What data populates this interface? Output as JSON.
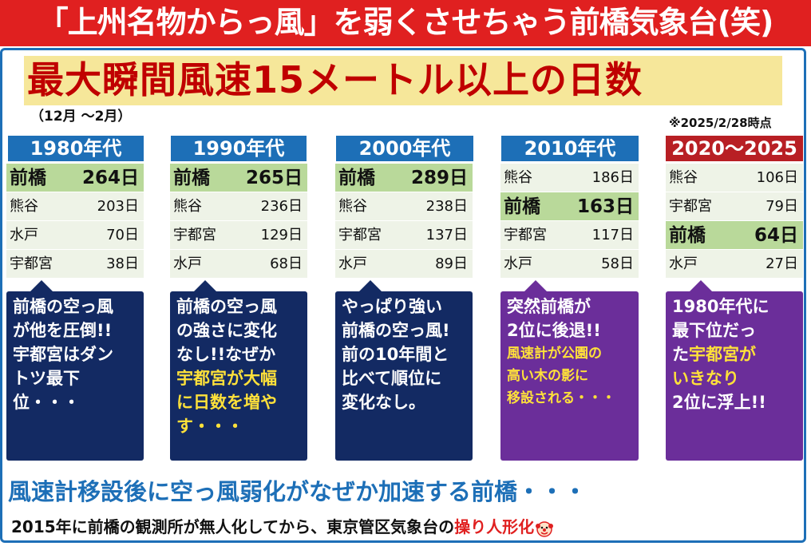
{
  "banner": {
    "title": "「上州名物からっ風」を弱くさせちゃう前橋気象台(笑)"
  },
  "main": {
    "title": "最大瞬間風速15メートル以上の日数",
    "period": "（12月 ～2月）",
    "as_of": "※2025/2/28時点"
  },
  "decades": [
    {
      "header": "1980年代",
      "rows": [
        {
          "city": "前橋",
          "days": "264日"
        },
        {
          "city": "熊谷",
          "days": "203日"
        },
        {
          "city": "水戸",
          "days": "70日"
        },
        {
          "city": "宇都宮",
          "days": "38日"
        }
      ],
      "callout": {
        "line1": "前橋の空っ風",
        "line2": "が他を圧倒!!",
        "line3": "宇都宮はダン",
        "line4": "トツ最下位・・・"
      }
    },
    {
      "header": "1990年代",
      "rows": [
        {
          "city": "前橋",
          "days": "265日"
        },
        {
          "city": "熊谷",
          "days": "236日"
        },
        {
          "city": "宇都宮",
          "days": "129日"
        },
        {
          "city": "水戸",
          "days": "68日"
        }
      ],
      "callout": {
        "line1": "前橋の空っ風",
        "line2": "の強さに変化",
        "line3": "なし!!なぜか",
        "hl1": "宇都宮が大幅",
        "line5": "に日数を増や",
        "line6": "す・・・"
      }
    },
    {
      "header": "2000年代",
      "rows": [
        {
          "city": "前橋",
          "days": "289日"
        },
        {
          "city": "熊谷",
          "days": "238日"
        },
        {
          "city": "宇都宮",
          "days": "137日"
        },
        {
          "city": "水戸",
          "days": "89日"
        }
      ],
      "callout": {
        "line1": "やっぱり強い",
        "line2": "前橋の空っ風!",
        "line3": "前の10年間と",
        "line4": "比べて順位に",
        "line5": "変化なし。"
      }
    },
    {
      "header": "2010年代",
      "rows": [
        {
          "city": "熊谷",
          "days": "186日"
        },
        {
          "city": "前橋",
          "days": "163日"
        },
        {
          "city": "宇都宮",
          "days": "117日"
        },
        {
          "city": "水戸",
          "days": "58日"
        }
      ],
      "callout": {
        "line1": "突然前橋が",
        "line2": "2位に後退!!",
        "hl1": "風速計が公園の",
        "hl2": "高い木の影に",
        "hl3": "移設される・・・"
      }
    },
    {
      "header": "2020～2025",
      "rows": [
        {
          "city": "熊谷",
          "days": "106日"
        },
        {
          "city": "宇都宮",
          "days": "79日"
        },
        {
          "city": "前橋",
          "days": "64日"
        },
        {
          "city": "水戸",
          "days": "27日"
        }
      ],
      "callout": {
        "line1": "1980年代に",
        "line2": "最下位だっ",
        "line3a": "た",
        "hl1": "宇都宮が",
        "hl2": "いきなり",
        "line5": "2位に浮上!!"
      }
    }
  ],
  "footer": {
    "headline": "風速計移設後に空っ風弱化がなぜか加速する前橋・・・",
    "note_prefix": "2015年に前橋の観測所が無人化してから、東京管区気象台の",
    "note_emphasis": "操り人形化",
    "icon": "clown-face-icon"
  },
  "colors": {
    "banner": "#e02020",
    "header_blue": "#1d6fb7",
    "header_red": "#b81f24",
    "callout_navy": "#132a63",
    "callout_purple": "#6b2e9a",
    "highlight_yellow": "#ffe13a",
    "title_red": "#c00000",
    "title_bg": "#f6e79a",
    "maebashi_row": "#b9d99a"
  }
}
